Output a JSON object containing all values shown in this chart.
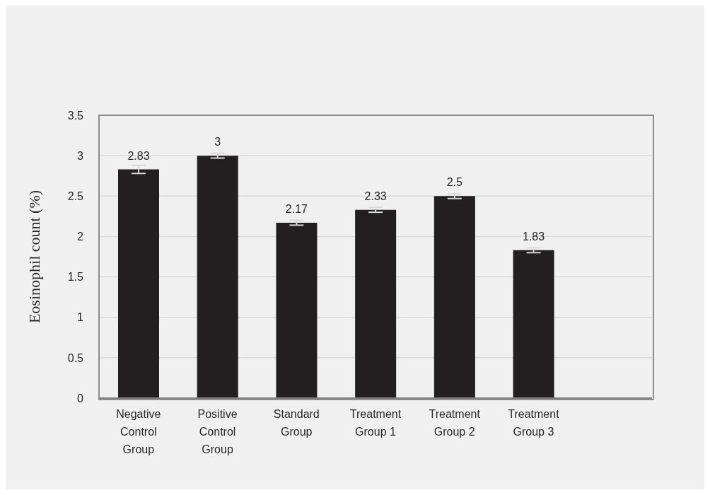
{
  "chart_data": {
    "type": "bar",
    "ylabel": "Eosinophil count  (%)",
    "categories": [
      "Negative Control Group",
      "Positive Control Group",
      "Standard Group",
      "Treatment Group 1",
      "Treatment Group 2",
      "Treatment Group 3",
      null
    ],
    "values": [
      2.83,
      3,
      2.17,
      2.33,
      2.5,
      1.83,
      null
    ],
    "errors": [
      0.05,
      0.03,
      0.03,
      0.03,
      0.03,
      0.03,
      null
    ],
    "color": "#231f20",
    "ylim": [
      0,
      3.5
    ],
    "yticks": [
      0,
      0.5,
      1,
      1.5,
      2,
      2.5,
      3,
      3.5
    ],
    "grid": "y",
    "data_labels": true
  }
}
